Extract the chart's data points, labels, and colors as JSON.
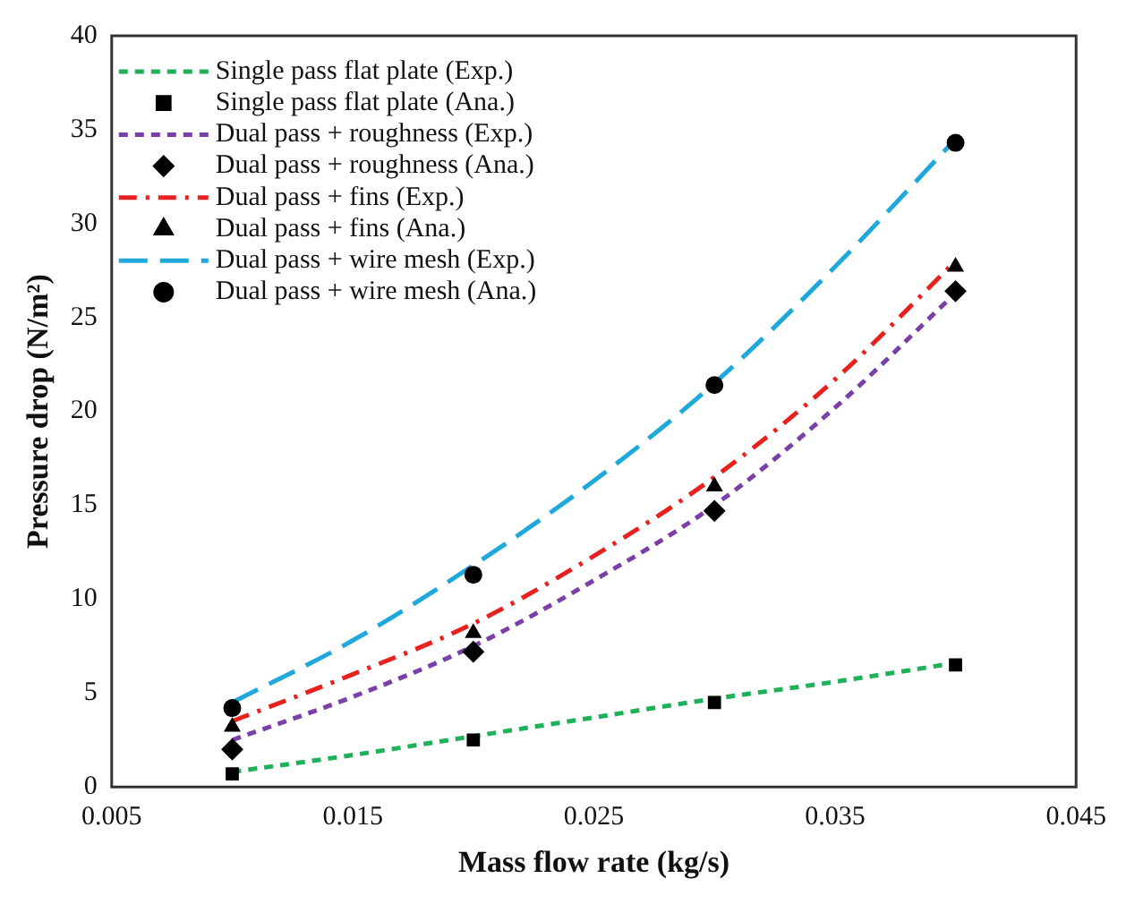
{
  "chart_data": {
    "type": "line",
    "xlabel": "Mass flow rate (kg/s)",
    "ylabel": "Pressure drop (N/m²)",
    "xlim": [
      0.005,
      0.045
    ],
    "xticks": [
      0.005,
      0.015,
      0.025,
      0.035,
      0.045
    ],
    "ylim": [
      0,
      40
    ],
    "yticks": [
      0,
      5,
      10,
      15,
      20,
      25,
      30,
      35,
      40
    ],
    "grid": false,
    "legend": "top left",
    "series": [
      {
        "name": "Single pass flat plate (Exp.)",
        "type": "line",
        "line_style": "dashed",
        "marker": "none",
        "color": "#1fb05a",
        "x": [
          0.01,
          0.015,
          0.02,
          0.025,
          0.03,
          0.035,
          0.04
        ],
        "values": [
          0.8,
          1.7,
          2.7,
          3.7,
          4.7,
          5.6,
          6.6
        ]
      },
      {
        "name": "Single pass flat plate (Ana.)",
        "type": "scatter",
        "marker": "square",
        "color": "#000000",
        "x": [
          0.01,
          0.02,
          0.03,
          0.04
        ],
        "values": [
          0.7,
          2.5,
          4.5,
          6.5
        ]
      },
      {
        "name": "Dual pass + roughness (Exp.)",
        "type": "line",
        "line_style": "dashed",
        "marker": "none",
        "color": "#7b3fa8",
        "x": [
          0.01,
          0.015,
          0.02,
          0.025,
          0.03,
          0.035,
          0.04
        ],
        "values": [
          2.5,
          4.8,
          7.5,
          11,
          15,
          20.2,
          26.3
        ]
      },
      {
        "name": "Dual pass + roughness (Ana.)",
        "type": "scatter",
        "marker": "diamond",
        "color": "#000000",
        "x": [
          0.01,
          0.02,
          0.03,
          0.04
        ],
        "values": [
          2,
          7.2,
          14.7,
          26.4
        ]
      },
      {
        "name": "Dual pass + fins (Exp.)",
        "type": "line",
        "line_style": "dashdot",
        "marker": "none",
        "color": "#e8201e",
        "x": [
          0.01,
          0.015,
          0.02,
          0.025,
          0.03,
          0.035,
          0.04
        ],
        "values": [
          3.5,
          6,
          8.7,
          12.3,
          16.5,
          21.7,
          28
        ]
      },
      {
        "name": "Dual pass + fins (Ana.)",
        "type": "scatter",
        "marker": "triangle",
        "color": "#000000",
        "x": [
          0.01,
          0.02,
          0.03,
          0.04
        ],
        "values": [
          3.2,
          8.2,
          16,
          27.7
        ]
      },
      {
        "name": "Dual pass + wire mesh (Exp.)",
        "type": "line",
        "line_style": "longdash",
        "marker": "none",
        "color": "#1fa8dc",
        "x": [
          0.01,
          0.015,
          0.02,
          0.025,
          0.03,
          0.035,
          0.04
        ],
        "values": [
          4.5,
          7.8,
          11.8,
          16.3,
          21.5,
          27.7,
          34.5
        ]
      },
      {
        "name": "Dual pass + wire mesh (Ana.)",
        "type": "scatter",
        "marker": "circle",
        "color": "#000000",
        "x": [
          0.01,
          0.02,
          0.03,
          0.04
        ],
        "values": [
          4.2,
          11.3,
          21.4,
          34.3
        ]
      }
    ]
  }
}
